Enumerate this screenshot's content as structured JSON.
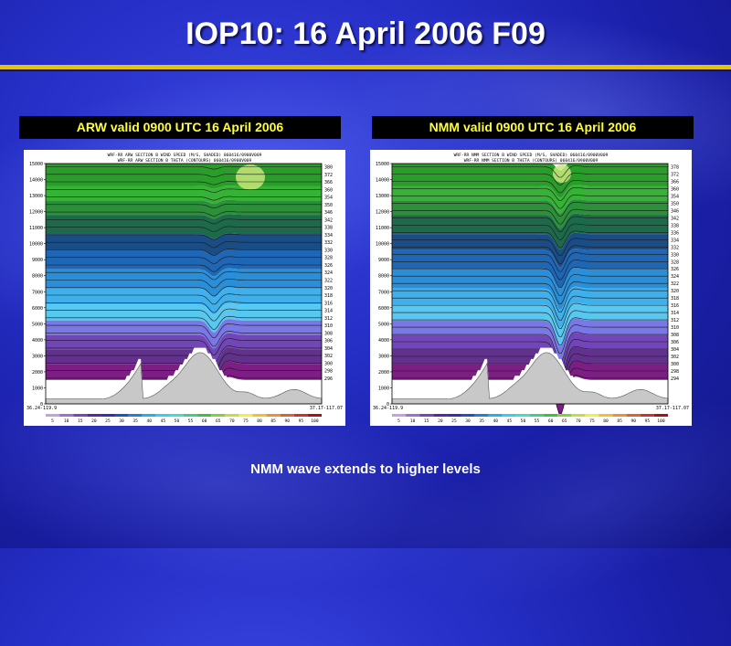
{
  "slide": {
    "title": "IOP10: 16 April 2006 F09",
    "caption": "NMM wave extends to higher levels"
  },
  "panels": [
    {
      "label": "ARW valid 0900 UTC 16 April 2006",
      "header_line1": "WRF-RR ARW SECTION B WIND SPEED (M/S, SHADED) 060416/0900V009",
      "header_line2": "WRF-RR ARW SECTION B THETA (CONTOURS) 060416/0900V009",
      "left_coord": "36.24-119.9",
      "right_coord": "37.17-117.07"
    },
    {
      "label": "NMM valid 0900 UTC 16 April 2006",
      "header_line1": "WRF-RR NMM SECTION B WIND SPEED (M/S, SHADED) 060416/0900V009",
      "header_line2": "WRF-RR NMM SECTION B THETA (CONTOURS) 060416/0900V009",
      "left_coord": "36.24-119.9",
      "right_coord": "37.17-117.07"
    }
  ],
  "axes": {
    "y_ticks": [
      "15000",
      "14000",
      "13000",
      "12000",
      "11000",
      "10000",
      "9000",
      "8000",
      "7000",
      "6000",
      "5000",
      "4000",
      "3000",
      "2000",
      "1000",
      "0"
    ],
    "theta_labels_left": [
      "380",
      "372",
      "366",
      "360",
      "354",
      "350",
      "346",
      "342",
      "338",
      "334",
      "332",
      "330",
      "328",
      "326",
      "324",
      "322",
      "320",
      "318",
      "316",
      "314",
      "312",
      "310",
      "308",
      "306",
      "304",
      "302",
      "300",
      "298",
      "296"
    ],
    "theta_labels_right": [
      "378",
      "372",
      "366",
      "360",
      "354",
      "350",
      "346",
      "342",
      "338",
      "336",
      "334",
      "332",
      "330",
      "328",
      "326",
      "324",
      "322",
      "320",
      "318",
      "316",
      "314",
      "312",
      "310",
      "308",
      "306",
      "304",
      "302",
      "300",
      "298",
      "294"
    ],
    "colorbar_ticks": [
      "5",
      "10",
      "15",
      "20",
      "25",
      "30",
      "35",
      "40",
      "45",
      "50",
      "55",
      "60",
      "65",
      "70",
      "75",
      "80",
      "85",
      "90",
      "95",
      "100"
    ],
    "colorbar_colors": [
      "#c8a0e0",
      "#a070d0",
      "#8040c0",
      "#6020b0",
      "#3030c0",
      "#2050d0",
      "#2080e0",
      "#20b0f0",
      "#30d0f0",
      "#40e0c0",
      "#40d080",
      "#40c040",
      "#80d040",
      "#c0e040",
      "#f0f040",
      "#f0c030",
      "#f09030",
      "#e06030",
      "#d03030",
      "#b01010"
    ]
  },
  "colors": {
    "band_colors": [
      "#2a9c2a",
      "#36b236",
      "#2c8f3a",
      "#1d6a4a",
      "#1a4c86",
      "#1f66b4",
      "#2a8fd8",
      "#3fb0ec",
      "#58c8f0",
      "#7a78e4",
      "#7246b8",
      "#62318e",
      "#7d1e84"
    ],
    "terrain": "#c8c8c8",
    "accent_gold": "#e8c400",
    "label_text": "#ffff33"
  }
}
